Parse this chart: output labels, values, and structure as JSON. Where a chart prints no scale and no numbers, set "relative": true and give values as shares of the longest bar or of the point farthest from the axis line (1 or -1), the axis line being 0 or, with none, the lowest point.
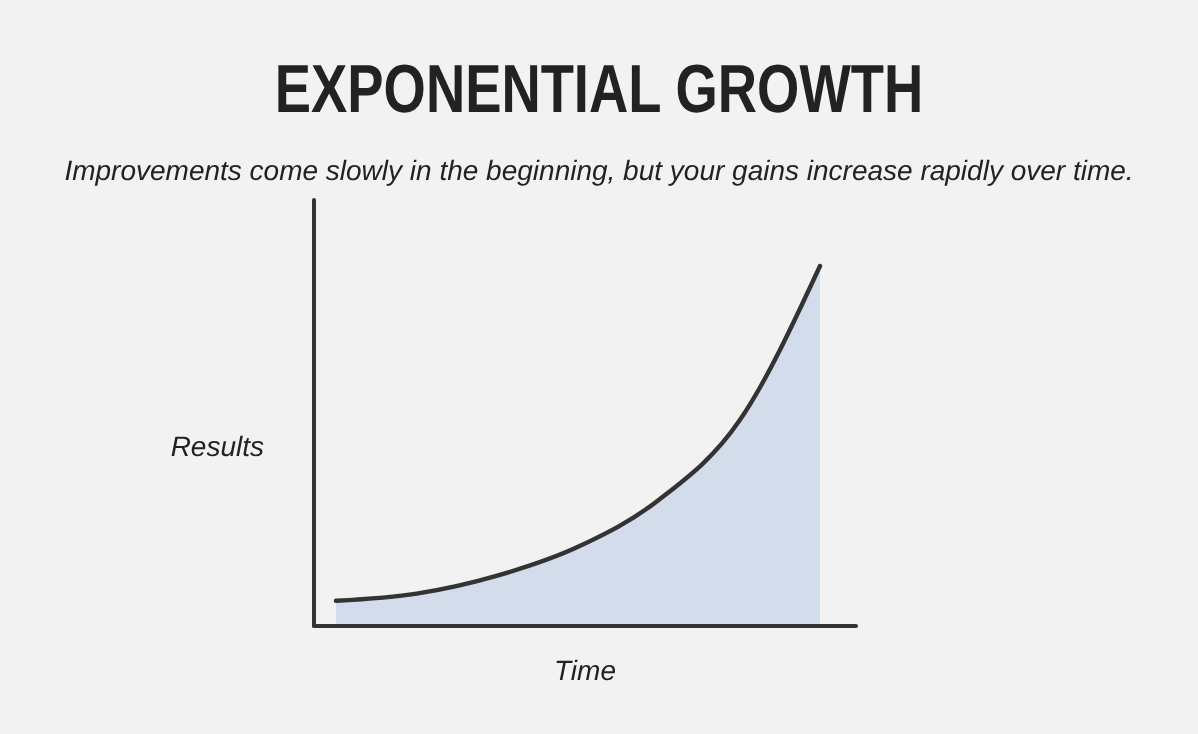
{
  "chart_data": {
    "type": "area",
    "title": "EXPONENTIAL GROWTH",
    "subtitle": "Improvements come slowly in the beginning, but your gains increase rapidly over time.",
    "xlabel": "Time",
    "ylabel": "Results",
    "relative": true,
    "categories": [
      null,
      null,
      null,
      null,
      null,
      null,
      null
    ],
    "series": [
      {
        "color": "#d3dcea",
        "values": [
          0.07,
          0.09,
          0.14,
          0.22,
          0.35,
          0.57,
          1.0
        ]
      }
    ]
  }
}
